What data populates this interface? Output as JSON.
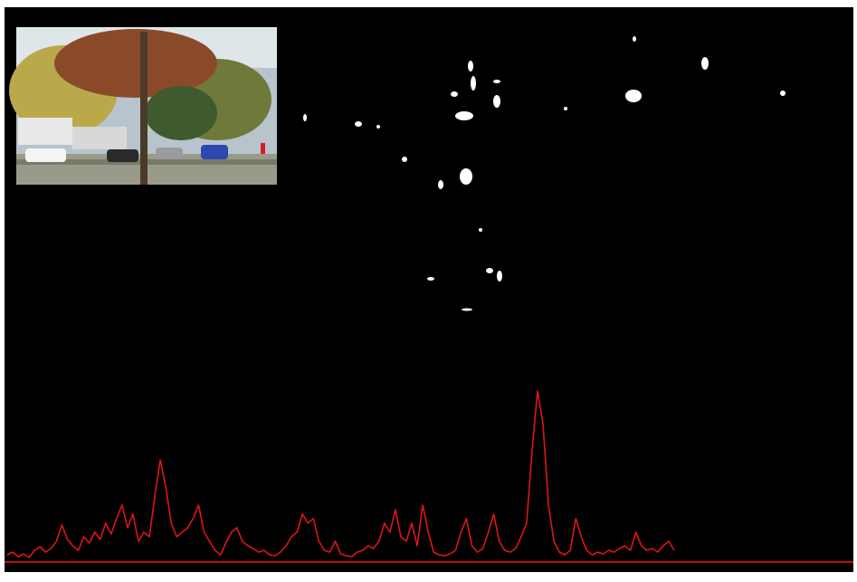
{
  "chart_data": {
    "type": "line",
    "color": "#e01515",
    "values": [
      5,
      8,
      3,
      6,
      2,
      10,
      14,
      8,
      12,
      20,
      38,
      22,
      15,
      10,
      25,
      18,
      30,
      22,
      40,
      28,
      45,
      60,
      35,
      50,
      20,
      30,
      25,
      70,
      110,
      80,
      40,
      25,
      30,
      35,
      45,
      60,
      30,
      20,
      10,
      5,
      18,
      30,
      35,
      20,
      15,
      12,
      8,
      10,
      5,
      4,
      8,
      15,
      25,
      30,
      50,
      40,
      45,
      20,
      10,
      8,
      20,
      6,
      4,
      3,
      8,
      10,
      15,
      12,
      20,
      40,
      30,
      55,
      25,
      20,
      40,
      15,
      60,
      30,
      8,
      5,
      4,
      6,
      10,
      30,
      45,
      15,
      8,
      12,
      30,
      50,
      20,
      10,
      8,
      12,
      25,
      40,
      120,
      186,
      150,
      60,
      20,
      8,
      5,
      10,
      45,
      25,
      10,
      5,
      8,
      6,
      10,
      8,
      12,
      15,
      10,
      30,
      15,
      10,
      12,
      8,
      15,
      20,
      10
    ]
  }
}
